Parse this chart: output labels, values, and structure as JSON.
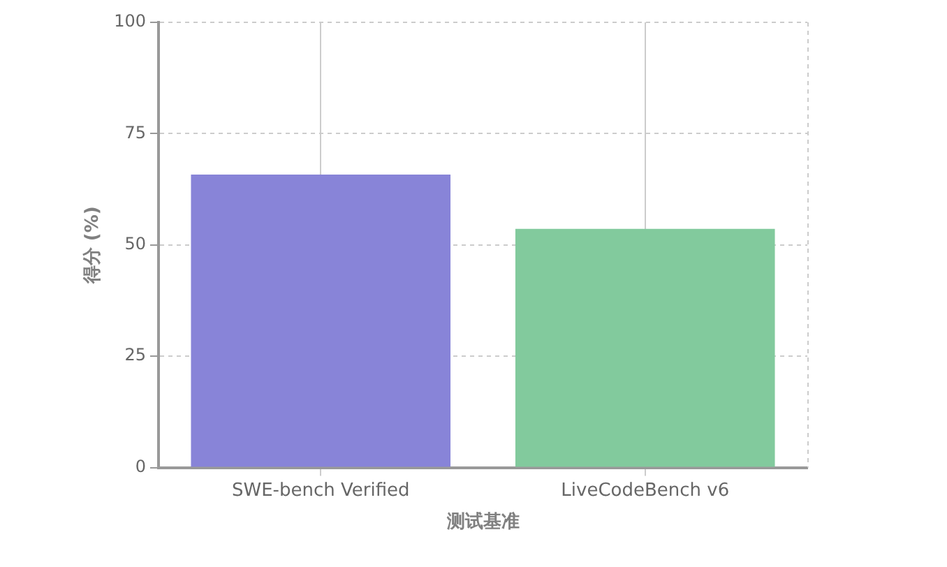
{
  "chart_data": {
    "type": "bar",
    "xlabel": "测试基准",
    "ylabel": "得分 (%)",
    "categories": [
      "SWE-bench Verified",
      "LiveCodeBench v6"
    ],
    "values": [
      65.8,
      53.6
    ],
    "colors": [
      "#8884d8",
      "#82ca9d"
    ],
    "ylim": [
      0,
      100
    ],
    "yticks": [
      0,
      25,
      50,
      75,
      100
    ],
    "grid": true
  }
}
